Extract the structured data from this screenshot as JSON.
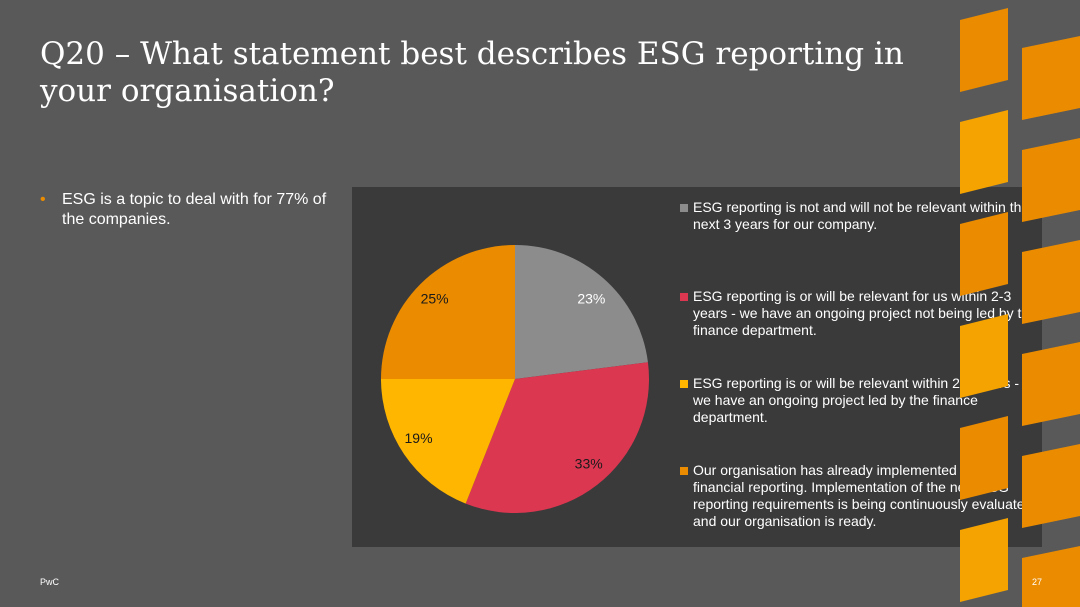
{
  "slide": {
    "title": "Q20 – What statement best describes ESG reporting in your organisation?",
    "bullets": [
      "ESG is a topic to deal with for 77% of the companies."
    ],
    "footer_left": "PwC",
    "page_number": "27"
  },
  "colors": {
    "background": "#595959",
    "chart_background": "#3a3a3a",
    "accent": "#eb8c00"
  },
  "chart_data": {
    "type": "pie",
    "title": "",
    "start_angle_deg": 0,
    "direction": "clockwise",
    "legend_position": "right",
    "slices": [
      {
        "label": "ESG reporting is not and will not be relevant within the next 3 years for our company.",
        "value": 23,
        "display": "23%",
        "color": "#8c8c8c"
      },
      {
        "label": "ESG reporting is or will be relevant for us within 2-3 years - we have an ongoing project not being led by the finance department.",
        "value": 33,
        "display": "33%",
        "color": "#db3751"
      },
      {
        "label": "ESG reporting is or will be relevant within 2-3 years - we have an ongoing project led by the finance department.",
        "value": 19,
        "display": "19%",
        "color": "#ffb600"
      },
      {
        "label": "Our organisation has already implemented non-financial reporting. Implementation of the new ESG reporting requirements is being continuously evaluated and our organisation is ready.",
        "value": 25,
        "display": "25%",
        "color": "#eb8c00"
      }
    ]
  }
}
